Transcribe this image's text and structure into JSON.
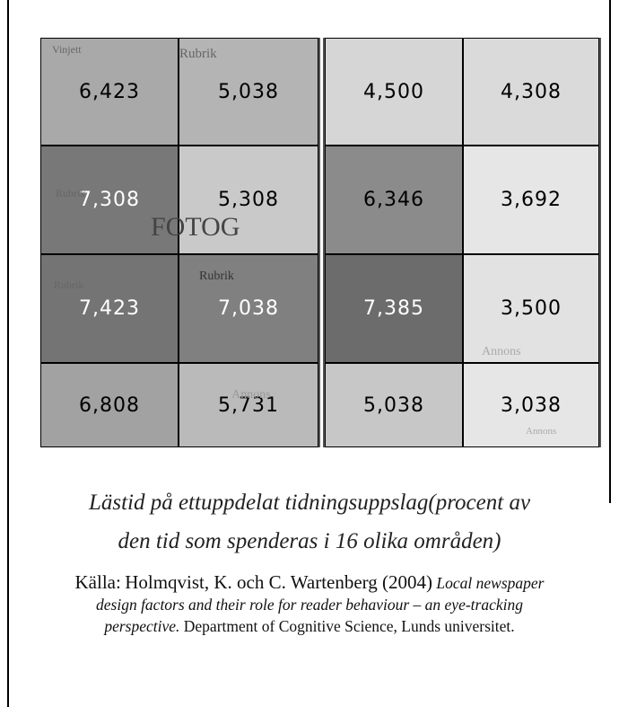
{
  "figure": {
    "grid": {
      "rows": [
        [
          "6,423",
          "5,038",
          "4,500",
          "4,308"
        ],
        [
          "7,308",
          "5,308",
          "6,346",
          "3,692"
        ],
        [
          "7,423",
          "7,038",
          "7,385",
          "3,500"
        ],
        [
          "6,808",
          "5,731",
          "5,038",
          "3,038"
        ]
      ]
    },
    "layout_labels": {
      "vinjett": "Vinjett",
      "rubrik_1": "Rubrik",
      "rubrik_2": "Rubrik",
      "rubrik_3": "Rubrik",
      "rubrik_4": "Rubrik",
      "fotog": "Fotog",
      "annons_1": "Annons",
      "annons_2": "Annons",
      "annons_3": "Annons"
    },
    "caption": [
      "Lästid på ettuppdelat tidningsuppslag(procent av",
      "den tid som spenderas i 16 olika områden)"
    ],
    "source": {
      "lead": "Källa:",
      "authors": "Holmqvist, K. och C. Wartenberg (2004)",
      "title": "Local newspaper design factors and their role for reader behaviour – an eye-tracking perspective.",
      "publisher": "Department of Cognitive Science, Lunds universitet."
    }
  }
}
